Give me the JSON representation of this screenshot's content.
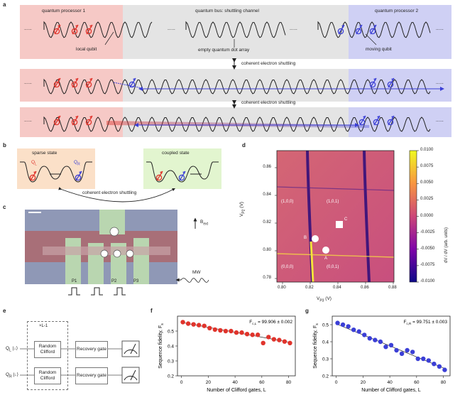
{
  "panel_a": {
    "label": "a",
    "left_region": "quantum processor 1",
    "middle_region": "quantum bus: shuttling channel",
    "right_region": "quantum processor 2",
    "local_qubit": "local qubit",
    "empty_array": "empty quantum dot array",
    "moving_qubit": "moving qubit",
    "shuttling_1": "coherent electron shuttling",
    "shuttling_2": "coherent electron shuttling",
    "ellipsis": "......",
    "colors": {
      "left": "#f6c9c6",
      "middle": "#e4e4e4",
      "right": "#cfd0f4",
      "red": "#e0342c",
      "blue": "#3b3fd6"
    }
  },
  "panel_b": {
    "label": "b",
    "sparse": "sparse state",
    "coupled": "coupled state",
    "shuttling": "coherent electron shuttling",
    "q_l": "Q",
    "q_l_sub": "L",
    "q_r": "Q",
    "q_r_sub": "R",
    "colors": {
      "sparse": "#fbe0c8",
      "coupled": "#e2f5cf"
    }
  },
  "panel_c": {
    "label": "c",
    "bext": "B",
    "bext_sub": "ext",
    "mw": "MW",
    "gates": [
      "P1",
      "P2",
      "P3"
    ]
  },
  "panel_d": {
    "label": "d",
    "xlabel": "V",
    "xlabel_sub": "P3",
    "xlabel_unit": " (V)",
    "ylabel": "V",
    "ylabel_sub": "P2",
    "ylabel_unit": " (V)",
    "cbar_label": "dV",
    "cbar_label_rest": " / dV",
    "cbar_label_unit": " (arb. units)",
    "xticks": [
      "0.80",
      "0.82",
      "0.84",
      "0.86",
      "0.88"
    ],
    "yticks": [
      "0.86",
      "0.84",
      "0.82",
      "0.80",
      "0.78"
    ],
    "cbar_ticks": [
      "0.0100",
      "0.0075",
      "0.0050",
      "0.0025",
      "0.0000",
      "-0.0025",
      "-0.0050",
      "-0.0075",
      "-0.0100"
    ],
    "regions": [
      "(1,0,0)",
      "(1,0,1)",
      "(0,0,0)",
      "(0,0,1)"
    ],
    "points": [
      "A",
      "B",
      "C"
    ]
  },
  "panel_e": {
    "label": "e",
    "loop": "×L-1",
    "q_l": "Q",
    "q_l_sub": "L",
    "q_r": "Q",
    "q_r_sub": "R",
    "ket": "|↓⟩",
    "random": "Random Clifford",
    "recovery": "Recovery gate"
  },
  "chart_data": [
    {
      "type": "scatter",
      "panel": "f",
      "xlabel": "Number of Clifford gates, L",
      "ylabel": "Sequence fidelity, F",
      "ylabel_sub": "s",
      "annotation": "F",
      "annotation_sub": "c,L",
      "annotation_value": " = 99.906 ± 0.002",
      "xlim": [
        -3,
        85
      ],
      "ylim": [
        0.2,
        0.6
      ],
      "xticks": [
        0,
        20,
        40,
        60,
        80
      ],
      "yticks": [
        0.2,
        0.3,
        0.4,
        0.5
      ],
      "color": "#e0342c",
      "x": [
        1,
        5,
        9,
        13,
        17,
        21,
        25,
        29,
        33,
        37,
        41,
        45,
        49,
        53,
        57,
        61,
        65,
        69,
        73,
        77,
        81
      ],
      "y": [
        0.56,
        0.55,
        0.545,
        0.54,
        0.535,
        0.52,
        0.51,
        0.505,
        0.5,
        0.5,
        0.49,
        0.49,
        0.48,
        0.475,
        0.475,
        0.42,
        0.46,
        0.445,
        0.44,
        0.43,
        0.42
      ],
      "fit": [
        [
          0,
          0.558
        ],
        [
          82,
          0.423
        ]
      ]
    },
    {
      "type": "scatter",
      "panel": "g",
      "xlabel": "Number of Clifford gates, L",
      "ylabel": "Sequence fidelity, F",
      "ylabel_sub": "s",
      "annotation": "F",
      "annotation_sub": "c,R",
      "annotation_value": " = 99.751 ± 0.003",
      "xlim": [
        -3,
        85
      ],
      "ylim": [
        0.2,
        0.55
      ],
      "xticks": [
        0,
        20,
        40,
        60,
        80
      ],
      "yticks": [
        0.2,
        0.3,
        0.4,
        0.5
      ],
      "color": "#3b3fd6",
      "x": [
        1,
        5,
        9,
        13,
        17,
        21,
        25,
        29,
        33,
        37,
        41,
        45,
        49,
        53,
        57,
        61,
        65,
        69,
        73,
        77,
        81
      ],
      "y": [
        0.51,
        0.5,
        0.49,
        0.47,
        0.46,
        0.44,
        0.42,
        0.41,
        0.4,
        0.37,
        0.38,
        0.35,
        0.33,
        0.35,
        0.34,
        0.3,
        0.3,
        0.29,
        0.27,
        0.255,
        0.235
      ],
      "fit": [
        [
          0,
          0.505
        ],
        [
          82,
          0.24
        ]
      ]
    }
  ]
}
